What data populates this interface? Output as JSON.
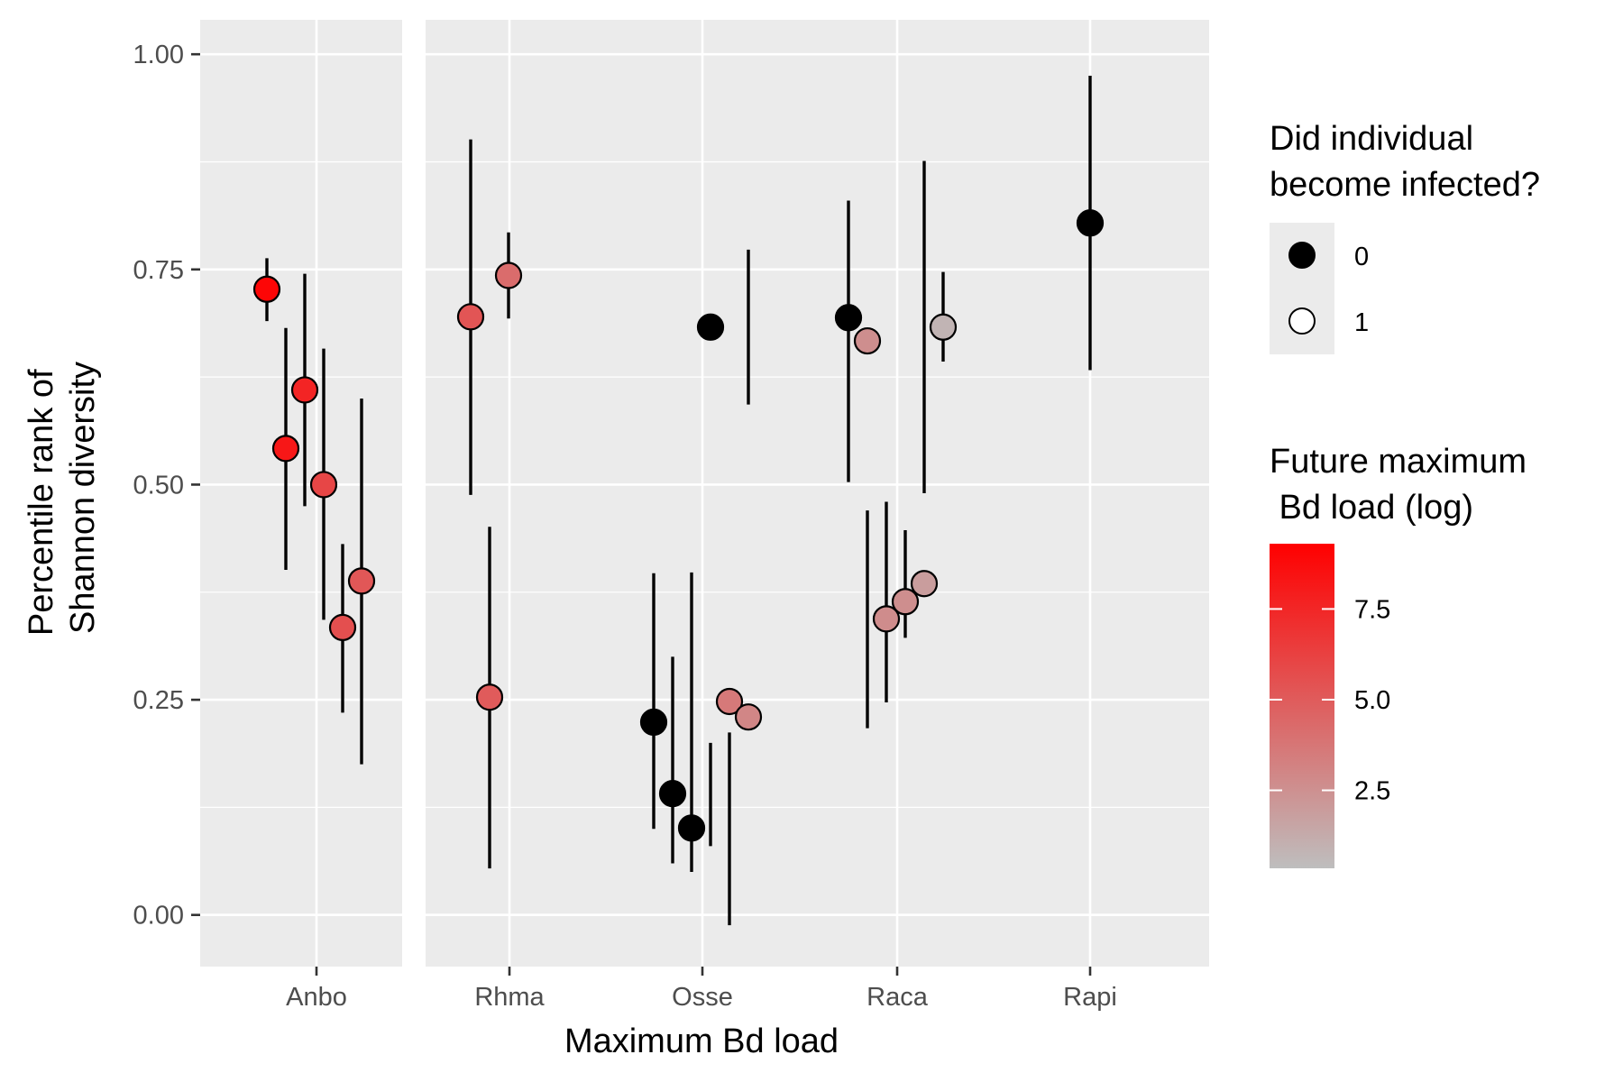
{
  "chart_data": {
    "type": "scatter",
    "variant": "faceted point-range",
    "xlabel": "Maximum Bd load",
    "ylabel_lines": [
      "Percentile rank of",
      "Shannon diversity"
    ],
    "ylim": [
      -0.06,
      1.04
    ],
    "y_ticks": [
      0.0,
      0.25,
      0.5,
      0.75,
      1.0
    ],
    "y_tick_labels": [
      "0.00",
      "0.25",
      "0.50",
      "0.75",
      "1.00"
    ],
    "grid": true,
    "facets": [
      {
        "label": "Anbo",
        "points": [
          {
            "y": 0.727,
            "lo": 0.69,
            "hi": 0.763,
            "infected": 1,
            "load": 9.0
          },
          {
            "y": 0.542,
            "lo": 0.401,
            "hi": 0.682,
            "infected": 1,
            "load": 8.2
          },
          {
            "y": 0.61,
            "lo": 0.475,
            "hi": 0.745,
            "infected": 1,
            "load": 7.6
          },
          {
            "y": 0.5,
            "lo": 0.343,
            "hi": 0.658,
            "infected": 1,
            "load": 6.0
          },
          {
            "y": 0.334,
            "lo": 0.235,
            "hi": 0.431,
            "infected": 1,
            "load": 5.6
          },
          {
            "y": 0.388,
            "lo": 0.175,
            "hi": 0.6,
            "infected": 1,
            "load": 5.2
          }
        ]
      },
      {
        "label": "Rhma",
        "points": [
          {
            "y": 0.695,
            "lo": 0.488,
            "hi": 0.901,
            "infected": 1,
            "load": 5.3
          },
          {
            "y": 0.253,
            "lo": 0.054,
            "hi": 0.451,
            "infected": 1,
            "load": 5.0
          },
          {
            "y": 0.743,
            "lo": 0.693,
            "hi": 0.793,
            "infected": 1,
            "load": 4.2
          }
        ]
      },
      {
        "label": "Osse",
        "points": [
          {
            "y": 0.224,
            "lo": 0.1,
            "hi": 0.397,
            "infected": 0
          },
          {
            "y": 0.141,
            "lo": 0.06,
            "hi": 0.3,
            "infected": 0
          },
          {
            "y": 0.101,
            "lo": 0.05,
            "hi": 0.398,
            "infected": 0
          },
          {
            "y": 0.683,
            "lo": 0.08,
            "hi": 0.2,
            "infected": 0,
            "range_shown": "error bar below"
          },
          {
            "y": 0.248,
            "lo": -0.012,
            "hi": 0.212,
            "infected": 1,
            "load": 3.6
          },
          {
            "y": 0.23,
            "lo": 0.593,
            "hi": 0.773,
            "infected": 1,
            "load": 3.0
          }
        ]
      },
      {
        "label": "Raca",
        "points": [
          {
            "y": 0.694,
            "lo": 0.503,
            "hi": 0.83,
            "infected": 0
          },
          {
            "y": 0.667,
            "lo": 0.217,
            "hi": 0.47,
            "infected": 1,
            "load": 2.6
          },
          {
            "y": 0.344,
            "lo": 0.247,
            "hi": 0.48,
            "infected": 1,
            "load": 2.7
          },
          {
            "y": 0.364,
            "lo": 0.322,
            "hi": 0.447,
            "infected": 1,
            "load": 2.6
          },
          {
            "y": 0.385,
            "lo": 0.49,
            "hi": 0.876,
            "infected": 1,
            "load": 1.9
          },
          {
            "y": 0.683,
            "lo": 0.643,
            "hi": 0.747,
            "infected": 1,
            "load": 0.8
          }
        ]
      },
      {
        "label": "Rapi",
        "points": [
          {
            "y": 0.804,
            "lo": 0.633,
            "hi": 0.975,
            "infected": 0
          }
        ]
      }
    ],
    "legend_shape": {
      "title_lines": [
        "Did individual",
        "become infected?"
      ],
      "entries": [
        {
          "label": "0",
          "fill": "#000000"
        },
        {
          "label": "1",
          "fill": "#ffffff"
        }
      ]
    },
    "legend_color": {
      "title_lines": [
        "Future maximum",
        " Bd load (log)"
      ],
      "min": 0.35,
      "max": 9.3,
      "ticks": [
        2.5,
        5.0,
        7.5
      ],
      "tick_labels": [
        "2.5",
        "5.0",
        "7.5"
      ],
      "low_color": "#bebebe",
      "high_color": "#ff0000"
    },
    "legend_placement": "right",
    "colors": {
      "panel_bg": "#ebebeb",
      "grid": "#ffffff",
      "infected_0_fill": "#000000",
      "point_stroke": "#000000"
    }
  }
}
